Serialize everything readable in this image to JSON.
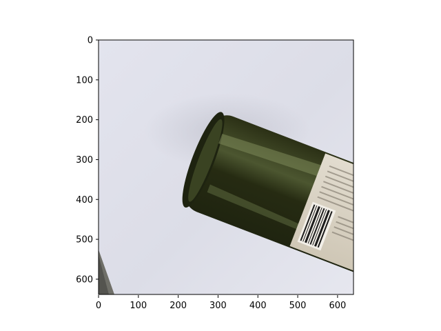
{
  "figure": {
    "x_axis": {
      "ticks": [
        "0",
        "100",
        "200",
        "300",
        "400",
        "500",
        "600"
      ]
    },
    "y_axis": {
      "ticks": [
        "0",
        "100",
        "200",
        "300",
        "400",
        "500",
        "600"
      ]
    },
    "image": {
      "description_icon": "wine-bottle-photo",
      "colors": {
        "background_paper": "#dcdde6",
        "bottle_glass": "#2e3318",
        "bottle_highlight": "#7d8a5a",
        "label": "#d9d2c3",
        "floor": "#6f6f68"
      }
    }
  }
}
